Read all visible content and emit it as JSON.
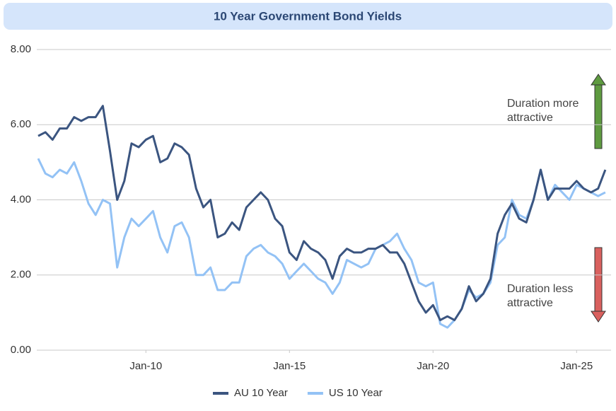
{
  "chart_data": {
    "type": "line",
    "title": "10 Year Government Bond Yields",
    "x": [
      2006.25,
      2006.5,
      2006.75,
      2007,
      2007.25,
      2007.5,
      2007.75,
      2008,
      2008.25,
      2008.5,
      2008.75,
      2009,
      2009.25,
      2009.5,
      2009.75,
      2010,
      2010.25,
      2010.5,
      2010.75,
      2011,
      2011.25,
      2011.5,
      2011.75,
      2012,
      2012.25,
      2012.5,
      2012.75,
      2013,
      2013.25,
      2013.5,
      2013.75,
      2014,
      2014.25,
      2014.5,
      2014.75,
      2015,
      2015.25,
      2015.5,
      2015.75,
      2016,
      2016.25,
      2016.5,
      2016.75,
      2017,
      2017.25,
      2017.5,
      2017.75,
      2018,
      2018.25,
      2018.5,
      2018.75,
      2019,
      2019.25,
      2019.5,
      2019.75,
      2020,
      2020.25,
      2020.5,
      2020.75,
      2021,
      2021.25,
      2021.5,
      2021.75,
      2022,
      2022.25,
      2022.5,
      2022.75,
      2023,
      2023.25,
      2023.5,
      2023.75,
      2024,
      2024.25,
      2024.5,
      2024.75,
      2025,
      2025.25,
      2025.5,
      2025.75,
      2026
    ],
    "series": [
      {
        "name": "AU 10 Year",
        "color": "#3b5580",
        "values": [
          5.7,
          5.8,
          5.6,
          5.9,
          5.9,
          6.2,
          6.1,
          6.2,
          6.2,
          6.5,
          5.3,
          4.0,
          4.5,
          5.5,
          5.4,
          5.6,
          5.7,
          5.0,
          5.1,
          5.5,
          5.4,
          5.2,
          4.3,
          3.8,
          4.0,
          3.0,
          3.1,
          3.4,
          3.2,
          3.8,
          4.0,
          4.2,
          4.0,
          3.5,
          3.3,
          2.6,
          2.4,
          2.9,
          2.7,
          2.6,
          2.4,
          1.9,
          2.5,
          2.7,
          2.6,
          2.6,
          2.7,
          2.7,
          2.8,
          2.6,
          2.6,
          2.3,
          1.8,
          1.3,
          1.0,
          1.2,
          0.8,
          0.9,
          0.8,
          1.1,
          1.7,
          1.3,
          1.5,
          1.9,
          3.1,
          3.6,
          3.9,
          3.5,
          3.4,
          4.0,
          4.8,
          4.0,
          4.3,
          4.3,
          4.3,
          4.5,
          4.3,
          4.2,
          4.3,
          4.8
        ]
      },
      {
        "name": "US 10 Year",
        "color": "#93c2f5",
        "values": [
          5.1,
          4.7,
          4.6,
          4.8,
          4.7,
          5.0,
          4.5,
          3.9,
          3.6,
          4.0,
          3.9,
          2.2,
          3.0,
          3.5,
          3.3,
          3.5,
          3.7,
          3.0,
          2.6,
          3.3,
          3.4,
          3.0,
          2.0,
          2.0,
          2.2,
          1.6,
          1.6,
          1.8,
          1.8,
          2.5,
          2.7,
          2.8,
          2.6,
          2.5,
          2.3,
          1.9,
          2.1,
          2.3,
          2.1,
          1.9,
          1.8,
          1.5,
          1.8,
          2.4,
          2.3,
          2.2,
          2.3,
          2.7,
          2.8,
          2.9,
          3.1,
          2.7,
          2.4,
          1.8,
          1.7,
          1.8,
          0.7,
          0.6,
          0.8,
          1.1,
          1.6,
          1.4,
          1.5,
          1.8,
          2.8,
          3.0,
          4.0,
          3.6,
          3.5,
          4.0,
          4.8,
          4.0,
          4.4,
          4.2,
          4.0,
          4.4,
          4.3,
          4.2,
          4.1,
          4.2
        ]
      }
    ],
    "xlim": [
      2006.2,
      2026.2
    ],
    "xticks": [
      {
        "value": 2010,
        "label": "Jan-10"
      },
      {
        "value": 2015,
        "label": "Jan-15"
      },
      {
        "value": 2020,
        "label": "Jan-20"
      },
      {
        "value": 2025,
        "label": "Jan-25"
      }
    ],
    "ylim": [
      0,
      8
    ],
    "yticks": [
      {
        "value": 0,
        "label": "0.00"
      },
      {
        "value": 2,
        "label": "2.00"
      },
      {
        "value": 4,
        "label": "4.00"
      },
      {
        "value": 6,
        "label": "6.00"
      },
      {
        "value": 8,
        "label": "8.00"
      }
    ],
    "grid": true,
    "legend": "bottom",
    "annotations": [
      [
        "Duration more",
        "attractive"
      ],
      [
        "Duration less",
        "attractive"
      ]
    ]
  }
}
